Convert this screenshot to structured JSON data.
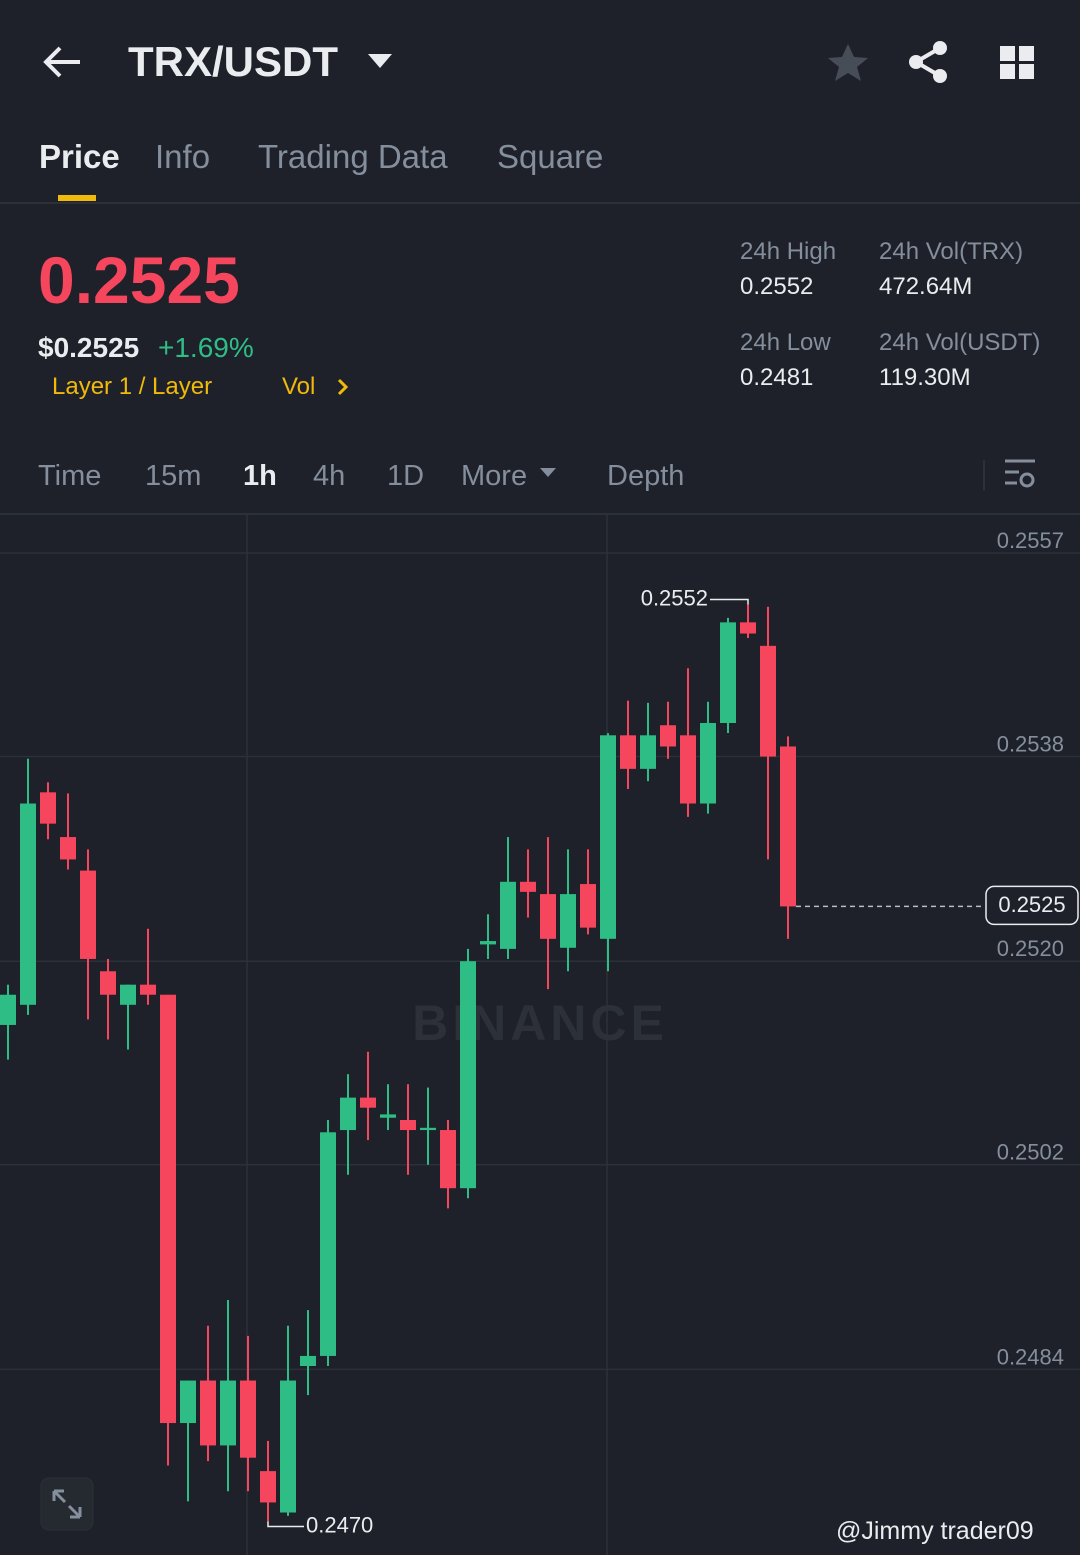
{
  "header": {
    "pair": "TRX/USDT"
  },
  "tabs": [
    "Price",
    "Info",
    "Trading Data",
    "Square"
  ],
  "ticker": {
    "price": "0.2525",
    "usd_price": "$0.2525",
    "change": "+1.69%",
    "tag": "Layer 1 / Layer",
    "vol_link": "Vol",
    "stats": [
      {
        "label": "24h High",
        "value": "0.2552"
      },
      {
        "label": "24h Vol(TRX)",
        "value": "472.64M"
      },
      {
        "label": "24h Low",
        "value": "0.2481"
      },
      {
        "label": "24h Vol(USDT)",
        "value": "119.30M"
      }
    ]
  },
  "intervals": [
    "Time",
    "15m",
    "1h",
    "4h",
    "1D",
    "More",
    "Depth"
  ],
  "watermark": "BINANCE",
  "credit": "@Jimmy trader09",
  "chart_data": {
    "type": "candlestick",
    "up_color": "#2ebd85",
    "down_color": "#f6465d",
    "grid": true,
    "ylim": [
      0.2467,
      0.256
    ],
    "yticks": [
      {
        "value": 0.25566,
        "label": "0.2557"
      },
      {
        "value": 0.25384,
        "label": "0.2538"
      },
      {
        "value": 0.25201,
        "label": "0.2520"
      },
      {
        "value": 0.25019,
        "label": "0.2502"
      },
      {
        "value": 0.24836,
        "label": "0.2484"
      }
    ],
    "open": [
      0.25144,
      0.25162,
      0.25352,
      0.25312,
      0.25282,
      0.25192,
      0.25162,
      0.2518,
      0.25171,
      0.24788,
      0.24826,
      0.24768,
      0.24826,
      0.24745,
      0.24708,
      0.24839,
      0.24848,
      0.2505,
      0.25079,
      0.25061,
      0.25059,
      0.2505,
      0.2505,
      0.24998,
      0.25216,
      0.25212,
      0.25272,
      0.25261,
      0.25213,
      0.2527,
      0.25221,
      0.25403,
      0.25373,
      0.25412,
      0.25403,
      0.25342,
      0.25414,
      0.25504,
      0.25483,
      0.25393
    ],
    "high": [
      0.2518,
      0.25382,
      0.25361,
      0.25351,
      0.25301,
      0.25203,
      0.2518,
      0.2523,
      0.25171,
      0.24826,
      0.24875,
      0.24898,
      0.24866,
      0.24772,
      0.24875,
      0.24889,
      0.25059,
      0.251,
      0.2512,
      0.25091,
      0.25091,
      0.25088,
      0.25059,
      0.25212,
      0.25243,
      0.25312,
      0.25301,
      0.25312,
      0.25301,
      0.25301,
      0.25405,
      0.25434,
      0.25432,
      0.25433,
      0.25463,
      0.25433,
      0.25508,
      0.2552,
      0.25518,
      0.25402
    ],
    "low": [
      0.25113,
      0.25153,
      0.2531,
      0.25283,
      0.25149,
      0.25131,
      0.25122,
      0.25162,
      0.2475,
      0.24718,
      0.24754,
      0.24727,
      0.24727,
      0.247,
      0.24705,
      0.24813,
      0.24839,
      0.2501,
      0.25041,
      0.2505,
      0.2501,
      0.25019,
      0.2498,
      0.24989,
      0.25203,
      0.25203,
      0.2524,
      0.25176,
      0.25192,
      0.25225,
      0.25192,
      0.25355,
      0.25362,
      0.25382,
      0.2533,
      0.25333,
      0.25405,
      0.2549,
      0.25292,
      0.25221
    ],
    "close": [
      0.25171,
      0.25342,
      0.25324,
      0.25292,
      0.25203,
      0.25171,
      0.2518,
      0.25171,
      0.24788,
      0.24826,
      0.24768,
      0.24826,
      0.24757,
      0.24717,
      0.24826,
      0.24848,
      0.25048,
      0.25079,
      0.2507,
      0.25064,
      0.2505,
      0.25052,
      0.24998,
      0.25201,
      0.25219,
      0.25272,
      0.25263,
      0.25221,
      0.25261,
      0.25231,
      0.25403,
      0.25373,
      0.25403,
      0.25393,
      0.25342,
      0.25414,
      0.25504,
      0.25494,
      0.25384,
      0.2525
    ],
    "current_price": 0.2525,
    "max_label": "0.2552",
    "min_label": "0.2470"
  }
}
